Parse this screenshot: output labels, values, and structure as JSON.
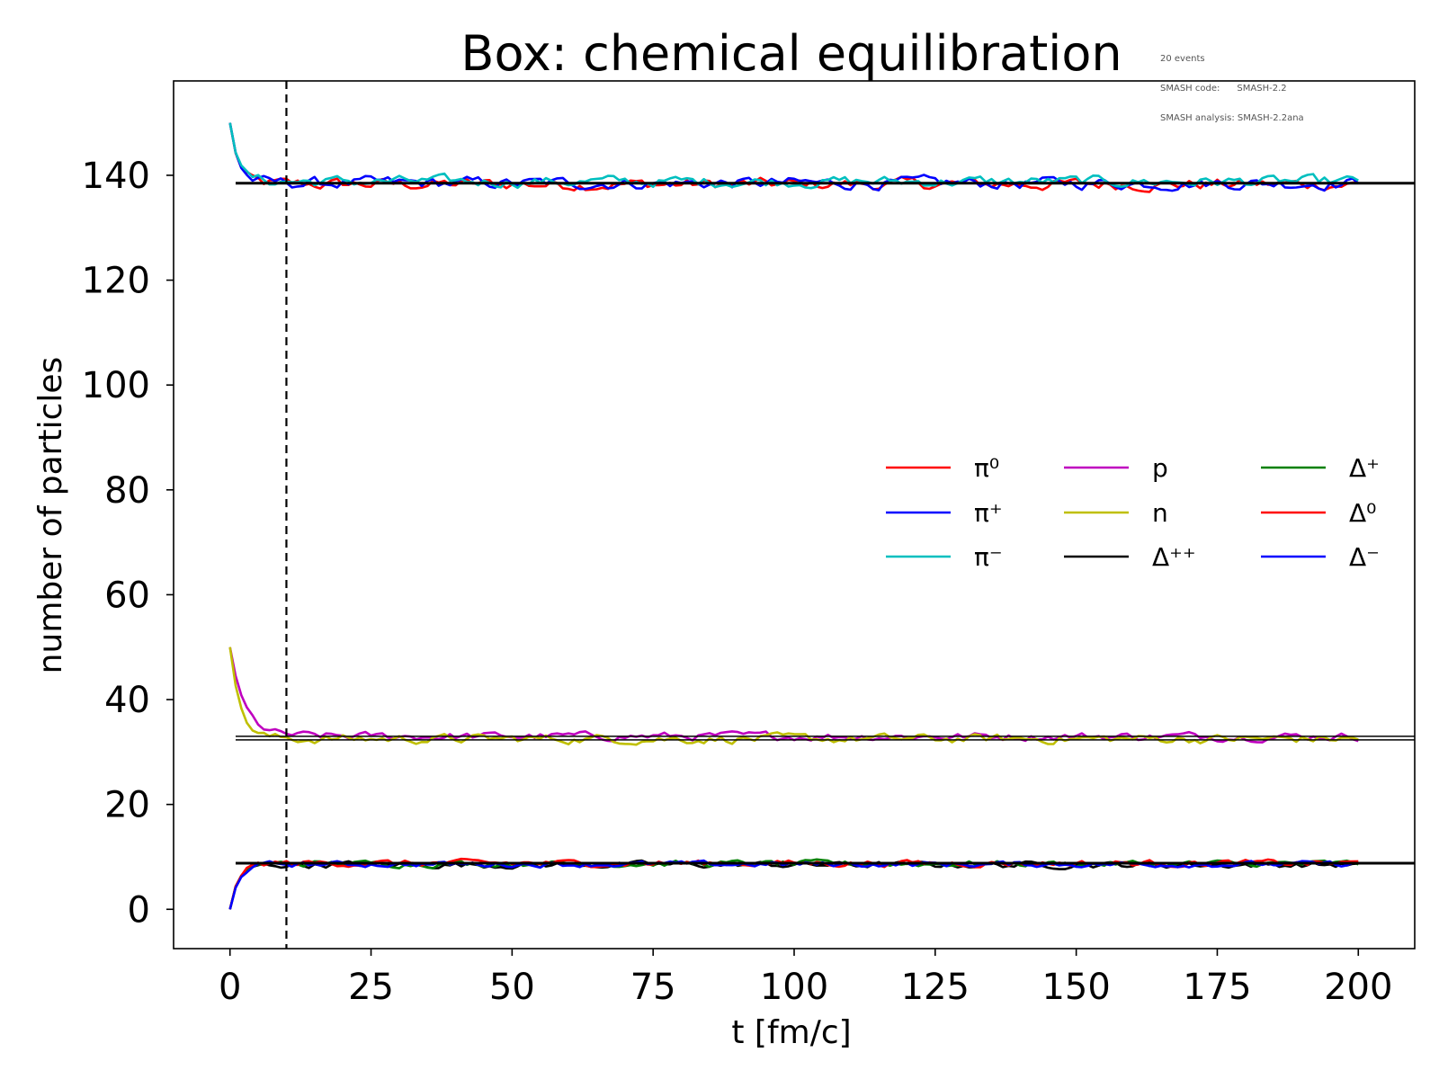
{
  "chart_data": {
    "type": "line",
    "title": "Box: chemical equilibration",
    "meta_lines": [
      "20 events",
      "SMASH code:      SMASH-2.2",
      "SMASH analysis: SMASH-2.2ana"
    ],
    "xlabel": "t [fm/c]",
    "ylabel": "number of particles",
    "xlim": [
      -10,
      210
    ],
    "ylim": [
      -7.5,
      158
    ],
    "xticks": [
      0,
      25,
      50,
      75,
      100,
      125,
      150,
      175,
      200
    ],
    "yticks": [
      0,
      20,
      40,
      60,
      80,
      100,
      120,
      140
    ],
    "grid": false,
    "legend_position": "center-right",
    "legend_columns": 3,
    "vertical_line": {
      "x": 10,
      "style": "dashed",
      "color": "#000000"
    },
    "reference_lines": [
      {
        "y": 138.5,
        "x_start": 1,
        "x_end": 210,
        "color": "#000000",
        "width": "thick"
      },
      {
        "y": 33.0,
        "x_start": 1,
        "x_end": 210,
        "color": "#000000",
        "width": "thin"
      },
      {
        "y": 32.3,
        "x_start": 1,
        "x_end": 210,
        "color": "#000000",
        "width": "thin"
      },
      {
        "y": 8.8,
        "x_start": 1,
        "x_end": 210,
        "color": "#000000",
        "width": "thick"
      }
    ],
    "series": [
      {
        "name": "π⁰",
        "color": "#ff0000",
        "start": 150,
        "equilibrium": 138.3,
        "tau": 1.5,
        "noise": 1.3
      },
      {
        "name": "π⁺",
        "color": "#0000ff",
        "start": 150,
        "equilibrium": 138.5,
        "tau": 1.5,
        "noise": 1.3
      },
      {
        "name": "π⁻",
        "color": "#00bfbf",
        "start": 150,
        "equilibrium": 138.8,
        "tau": 1.5,
        "noise": 1.2
      },
      {
        "name": "p",
        "color": "#bf00bf",
        "start": 50,
        "equilibrium": 33.0,
        "tau": 2.5,
        "noise": 0.9
      },
      {
        "name": "n",
        "color": "#bfbf00",
        "start": 50,
        "equilibrium": 32.5,
        "tau": 1.8,
        "noise": 1.0
      },
      {
        "name": "Δ⁺⁺",
        "color": "#000000",
        "start": 0,
        "equilibrium": 8.5,
        "tau": 1.5,
        "noise": 0.7
      },
      {
        "name": "Δ⁺",
        "color": "#008000",
        "start": 0,
        "equilibrium": 8.7,
        "tau": 1.5,
        "noise": 0.7
      },
      {
        "name": "Δ⁰",
        "color": "#ff0000",
        "start": 0,
        "equilibrium": 8.8,
        "tau": 1.5,
        "noise": 0.7
      },
      {
        "name": "Δ⁻",
        "color": "#0000ff",
        "start": 0,
        "equilibrium": 8.6,
        "tau": 1.5,
        "noise": 0.6
      }
    ]
  }
}
